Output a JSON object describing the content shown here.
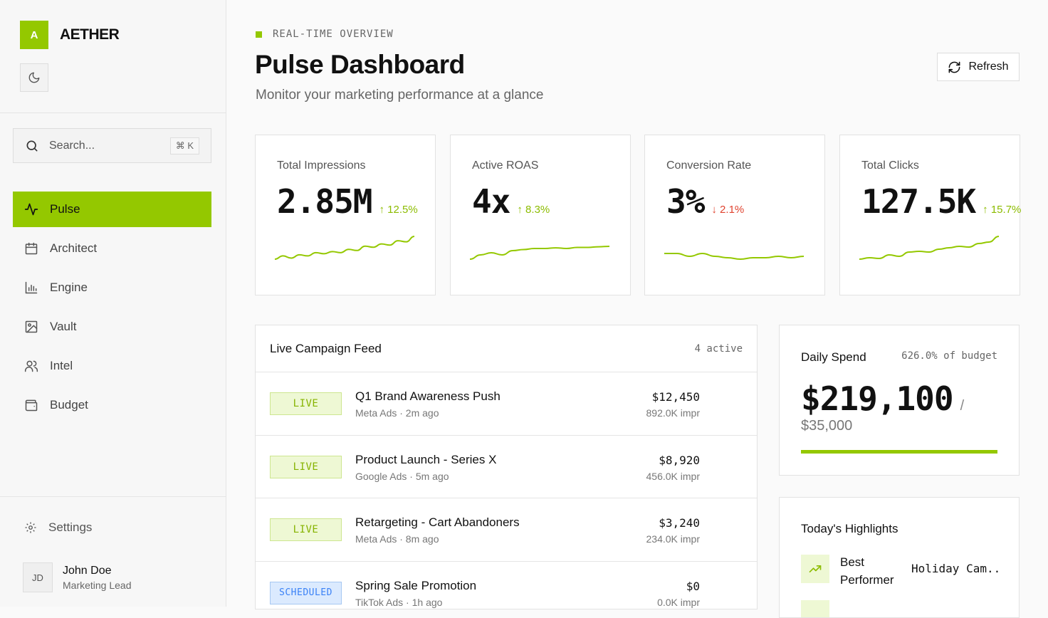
{
  "brand": {
    "logo_letter": "A",
    "name": "AETHER"
  },
  "search": {
    "placeholder": "Search...",
    "shortcut": "⌘ K"
  },
  "nav": [
    {
      "label": "Pulse",
      "icon": "activity-icon",
      "active": true
    },
    {
      "label": "Architect",
      "icon": "calendar-icon"
    },
    {
      "label": "Engine",
      "icon": "bar-chart-icon"
    },
    {
      "label": "Vault",
      "icon": "image-icon"
    },
    {
      "label": "Intel",
      "icon": "users-icon"
    },
    {
      "label": "Budget",
      "icon": "wallet-icon"
    }
  ],
  "settings_label": "Settings",
  "user": {
    "initials": "JD",
    "name": "John Doe",
    "role": "Marketing Lead"
  },
  "header": {
    "eyebrow": "REAL-TIME OVERVIEW",
    "title": "Pulse Dashboard",
    "subtitle": "Monitor your marketing performance at a glance",
    "refresh_label": "Refresh"
  },
  "colors": {
    "accent": "#94c800",
    "up": "#8cbc00",
    "down": "#e0432f"
  },
  "metrics": [
    {
      "label": "Total Impressions",
      "value": "2.85M",
      "change": "↑ 12.5%",
      "direction": "up",
      "trend": [
        3,
        6,
        4,
        7,
        6,
        9,
        8,
        10,
        9,
        12,
        11,
        15,
        14,
        17,
        16,
        20,
        19,
        24
      ]
    },
    {
      "label": "Active ROAS",
      "value": "4x",
      "change": "↑ 8.3%",
      "direction": "up",
      "trend": [
        3,
        5,
        6,
        5,
        7,
        7.5,
        8,
        8,
        8.3,
        8,
        8.5,
        8.5,
        8.8,
        9
      ]
    },
    {
      "label": "Conversion Rate",
      "value": "3%",
      "change": "↓ 2.1%",
      "direction": "down",
      "trend": [
        6,
        6,
        5.6,
        6,
        5.6,
        5.4,
        5.2,
        5.4,
        5.4,
        5.6,
        5.4,
        5.6
      ]
    },
    {
      "label": "Total Clicks",
      "value": "127.5K",
      "change": "↑ 15.7%",
      "direction": "up",
      "trend": [
        3,
        4,
        3.5,
        6,
        5,
        8,
        8.5,
        8,
        10,
        11,
        12,
        11.5,
        14,
        15,
        19
      ]
    }
  ],
  "feed": {
    "title": "Live Campaign Feed",
    "count": "4 active",
    "campaigns": [
      {
        "status": "LIVE",
        "kind": "live",
        "name": "Q1 Brand Awareness Push",
        "meta": "Meta Ads · 2m ago",
        "amount": "$12,450",
        "impressions": "892.0K impr"
      },
      {
        "status": "LIVE",
        "kind": "live",
        "name": "Product Launch - Series X",
        "meta": "Google Ads · 5m ago",
        "amount": "$8,920",
        "impressions": "456.0K impr"
      },
      {
        "status": "LIVE",
        "kind": "live",
        "name": "Retargeting - Cart Abandoners",
        "meta": "Meta Ads · 8m ago",
        "amount": "$3,240",
        "impressions": "234.0K impr"
      },
      {
        "status": "SCHEDULED",
        "kind": "scheduled",
        "name": "Spring Sale Promotion",
        "meta": "TikTok Ads · 1h ago",
        "amount": "$0",
        "impressions": "0.0K impr"
      }
    ]
  },
  "spend": {
    "title": "Daily Spend",
    "percent_of_budget": "626.0% of budget",
    "value": "$219,100",
    "slash": "/",
    "budget": "$35,000",
    "progress": 1.0
  },
  "highlights": {
    "title": "Today's Highlights",
    "items": [
      {
        "icon": "trending-up-icon",
        "label": "Best Performer",
        "value": "Holiday Cam..."
      }
    ]
  }
}
